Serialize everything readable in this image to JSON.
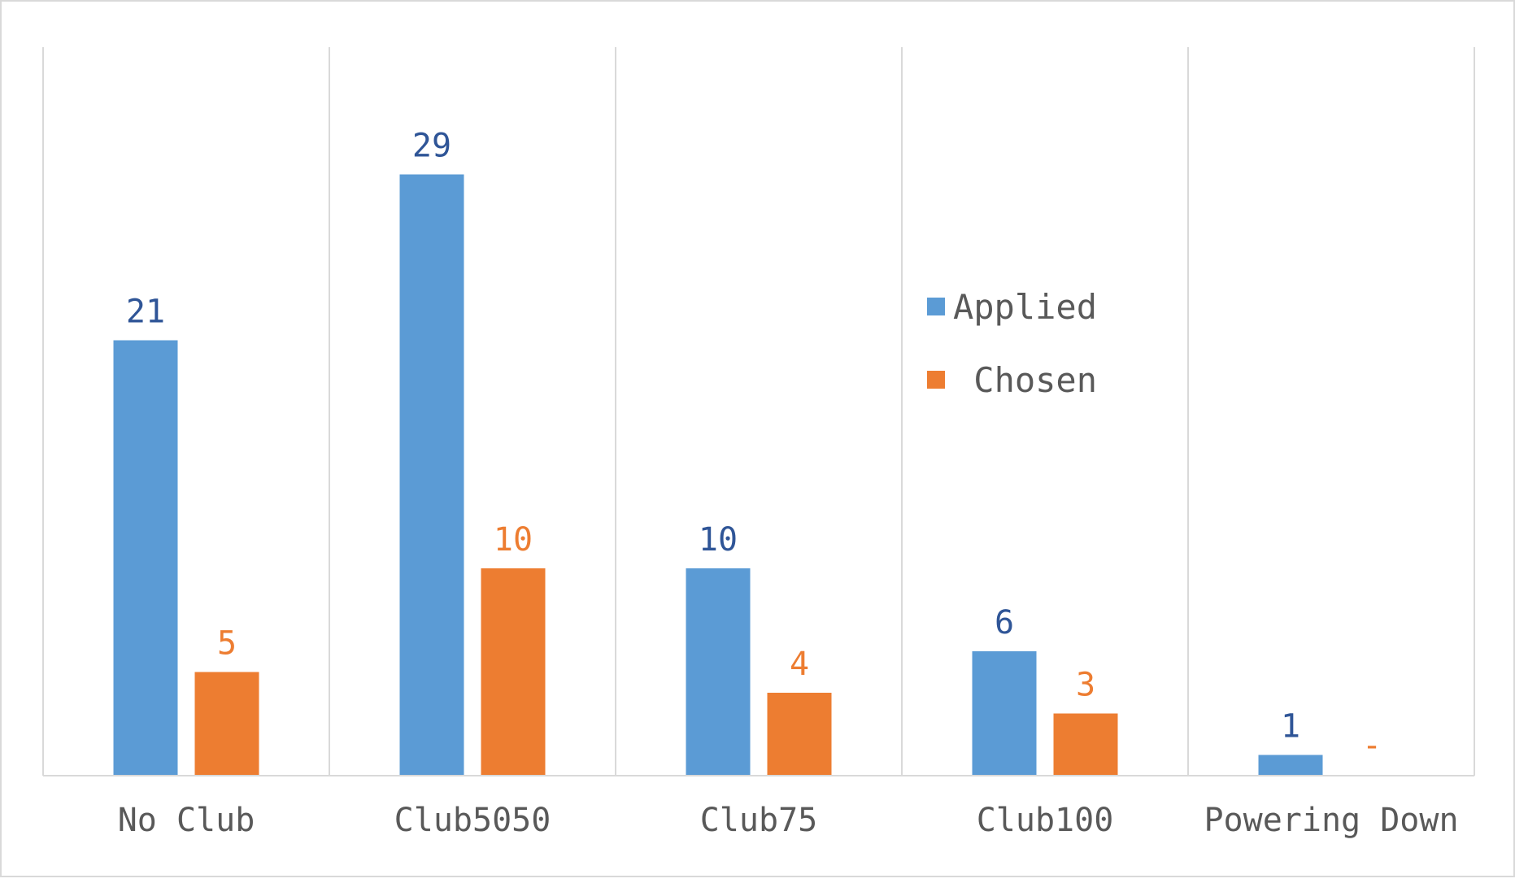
{
  "chart_data": {
    "type": "bar",
    "title": "",
    "xlabel": "",
    "ylabel": "",
    "categories": [
      "No Club",
      "Club5050",
      "Club75",
      "Club100",
      "Powering Down"
    ],
    "series": [
      {
        "name": "Applied",
        "values": [
          21,
          29,
          10,
          6,
          1
        ],
        "labels": [
          "21",
          "29",
          "10",
          "6",
          "1"
        ],
        "color": "#5b9bd5",
        "label_color": "#2f5597"
      },
      {
        "name": "Chosen",
        "values": [
          5,
          10,
          4,
          3,
          0
        ],
        "labels": [
          "5",
          "10",
          "4",
          "3",
          "-"
        ],
        "color": "#ed7d31",
        "label_color": "#ed7d31"
      }
    ],
    "ylim": [
      0,
      35
    ],
    "grid": "vertical category dividers",
    "legend": {
      "position": "right-center"
    }
  }
}
